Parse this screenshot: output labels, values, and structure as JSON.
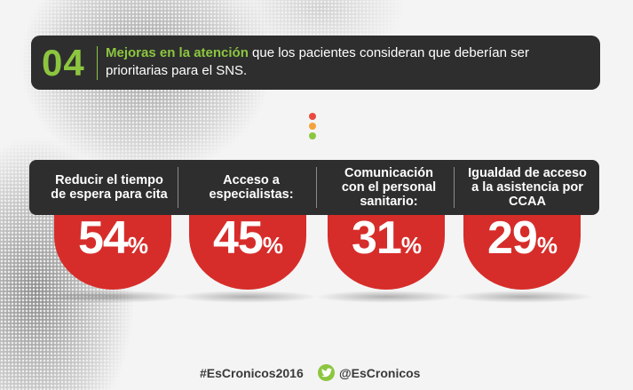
{
  "header": {
    "number": "04",
    "highlight": "Mejoras en la atención",
    "text_line1_rest": " que los pacientes consideran que deberían ser",
    "text_line2": "prioritarias para el SNS."
  },
  "stats": [
    {
      "label_lines": [
        "Reducir el tiempo",
        "de espera para cita"
      ],
      "value": "54",
      "unit": "%"
    },
    {
      "label_lines": [
        "Acceso a",
        "especialistas:"
      ],
      "value": "45",
      "unit": "%"
    },
    {
      "label_lines": [
        "Comunicación",
        "con el personal",
        "sanitario:"
      ],
      "value": "31",
      "unit": "%"
    },
    {
      "label_lines": [
        "Igualdad de acceso",
        "a la asistencia por",
        "CCAA"
      ],
      "value": "29",
      "unit": "%"
    }
  ],
  "footer": {
    "hashtag": "#EsCronicos2016",
    "handle": "@EsCronicos"
  },
  "colors": {
    "accent_green": "#8cc63f",
    "circle_red": "#d62d2a",
    "bar_dark": "#2e2e2e"
  },
  "icons": [
    "traffic-light-dots-icon",
    "twitter-icon"
  ]
}
